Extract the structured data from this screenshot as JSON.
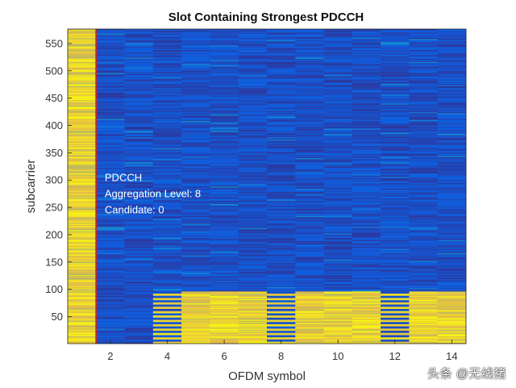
{
  "chart_data": {
    "type": "heatmap",
    "title": "Slot Containing Strongest PDCCH",
    "xlabel": "OFDM symbol",
    "ylabel": "subcarrier",
    "xlim": [
      0.5,
      14.5
    ],
    "ylim": [
      0.5,
      576.5
    ],
    "xticks": [
      2,
      4,
      6,
      8,
      10,
      12,
      14
    ],
    "yticks": [
      50,
      100,
      150,
      200,
      250,
      300,
      350,
      400,
      450,
      500,
      550
    ],
    "n_symbols": 14,
    "n_subcarriers": 576,
    "pdcch_subcarrier_range": [
      1,
      96
    ],
    "high_symbols": [
      1
    ],
    "coreset_symbols": [
      4,
      5,
      6,
      7,
      8,
      9,
      10,
      11,
      12,
      13,
      14
    ],
    "dmrs_symbols": [
      4,
      8,
      12
    ],
    "grid": false,
    "colormap": "parula",
    "annotation": [
      "PDCCH",
      "Aggregation Level: 8",
      "Candidate: 0"
    ],
    "annotation_position": [
      1.8,
      298
    ]
  },
  "watermark": "头条 @无线猪"
}
